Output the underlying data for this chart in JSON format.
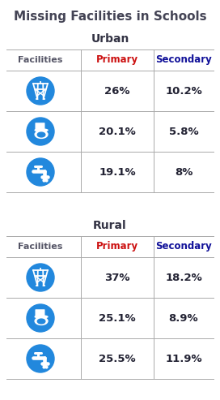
{
  "title": "Missing Facilities in Schools",
  "title_fontsize": 11,
  "title_color": "#444455",
  "background_color": "#ffffff",
  "sections": [
    {
      "label": "Urban",
      "rows": [
        {
          "primary": "26%",
          "secondary": "10.2%"
        },
        {
          "primary": "20.1%",
          "secondary": "5.8%"
        },
        {
          "primary": "19.1%",
          "secondary": "8%"
        }
      ]
    },
    {
      "label": "Rural",
      "rows": [
        {
          "primary": "37%",
          "secondary": "18.2%"
        },
        {
          "primary": "25.1%",
          "secondary": "8.9%"
        },
        {
          "primary": "25.5%",
          "secondary": "11.9%"
        }
      ]
    }
  ],
  "col_header_facilities": "Facilities",
  "col_header_primary": "Primary",
  "col_header_secondary": "Secondary",
  "header_facilities_color": "#555566",
  "header_primary_color": "#cc1111",
  "header_secondary_color": "#111199",
  "data_color": "#222233",
  "icon_circle_color": "#2288dd",
  "icon_color": "#ffffff",
  "line_color": "#aaaaaa",
  "section_label_color": "#333344",
  "section_label_fontsize": 10
}
